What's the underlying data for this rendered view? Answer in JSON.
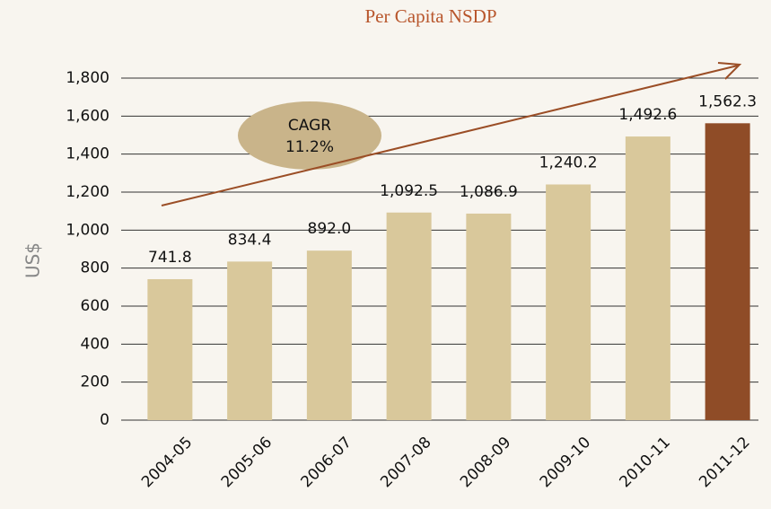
{
  "chart_data": {
    "type": "bar",
    "title": "Per Capita NSDP",
    "y_label": "US$",
    "categories": [
      "2004-05",
      "2005-06",
      "2006-07",
      "2007-08",
      "2008-09",
      "2009-10",
      "2010-11",
      "2011-12"
    ],
    "values": [
      741.8,
      834.4,
      892.0,
      1092.5,
      1086.9,
      1240.2,
      1492.6,
      1562.3
    ],
    "value_labels": [
      "741.8",
      "834.4",
      "892.0",
      "1,092.5",
      "1,086.9",
      "1,240.2",
      "1,492.6",
      "1,562.3"
    ],
    "colors": [
      "#d9c89b",
      "#d9c89b",
      "#d9c89b",
      "#d9c89b",
      "#d9c89b",
      "#d9c89b",
      "#d9c89b",
      "#8f4c27"
    ],
    "ylim": [
      0,
      1800
    ],
    "yticks": [
      0,
      200,
      400,
      600,
      800,
      {
        "value": 1000,
        "label": "1,000"
      },
      {
        "value": 1200,
        "label": "1,200"
      },
      {
        "value": 1400,
        "label": "1,400"
      },
      {
        "value": 1600,
        "label": "1,600"
      },
      {
        "value": 1800,
        "label": "1,800"
      }
    ],
    "grid": true,
    "annotation": {
      "title": "CAGR",
      "value": "11.2%"
    }
  }
}
